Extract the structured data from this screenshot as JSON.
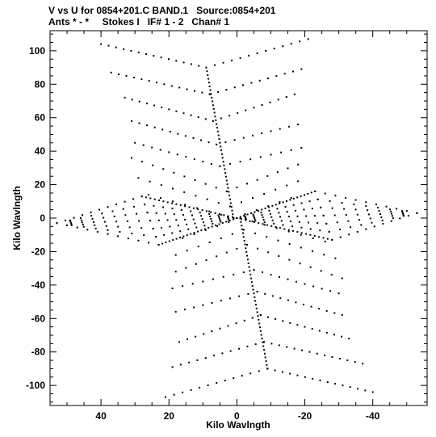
{
  "header": {
    "line1": "V vs U for 0854+201.C BAND.1   Source:0854+201",
    "line2": "Ants * - *     Stokes I   IF# 1 - 2   Chan# 1"
  },
  "chart_data": {
    "type": "scatter",
    "title": "V vs U for 0854+201.C BAND.1   Source:0854+201",
    "subtitle": "Ants * - *     Stokes I   IF# 1 - 2   Chan# 1",
    "xlabel": "Kilo Wavlngth",
    "ylabel": "Kilo Wavlngth",
    "xlim": [
      55,
      -56
    ],
    "ylim": [
      -112,
      112
    ],
    "x_ticks": [
      40,
      20,
      0,
      -20,
      -40
    ],
    "x_tick_labels": [
      "40",
      "20",
      "0",
      "-20",
      "-40"
    ],
    "y_ticks": [
      100,
      80,
      60,
      40,
      20,
      0,
      -20,
      -40,
      -60,
      -80,
      -100
    ],
    "y_tick_labels": [
      "100",
      "80",
      "60",
      "40",
      "20",
      "0",
      "-20",
      "-40",
      "-60",
      "-80",
      "-100"
    ],
    "grid": false,
    "point_color": "#000000",
    "uv_tracks": {
      "description_note": "UV coverage with conjugate symmetry; upper V-shaped arcs mirrored to lower Λ-shaped arcs",
      "upper_arcs": [
        {
          "left": [
            40,
            104
          ],
          "vertex": [
            9,
            90
          ],
          "right": [
            -21,
            107
          ]
        },
        {
          "left": [
            37,
            87
          ],
          "vertex": [
            8,
            74
          ],
          "right": [
            -19,
            89
          ]
        },
        {
          "left": [
            33,
            72
          ],
          "vertex": [
            7,
            58
          ],
          "right": [
            -17,
            74
          ]
        },
        {
          "left": [
            31,
            58
          ],
          "vertex": [
            6,
            44
          ],
          "right": [
            -18,
            56
          ]
        },
        {
          "left": [
            30,
            45
          ],
          "vertex": [
            5,
            31
          ],
          "right": [
            -19,
            42
          ]
        },
        {
          "left": [
            31,
            36
          ],
          "vertex": [
            3,
            16
          ],
          "right": [
            -18,
            32
          ]
        },
        {
          "left": [
            29,
            24
          ],
          "vertex": [
            2,
            7
          ],
          "right": [
            -18,
            22
          ]
        },
        {
          "left": [
            26,
            14
          ],
          "vertex": [
            1,
            0
          ],
          "right": [
            -16,
            12
          ]
        }
      ],
      "left_lobe": {
        "left_tip": [
          53,
          -3
        ],
        "top_corner": [
          28,
          13
        ],
        "bottom_corner": [
          23,
          -16
        ],
        "vertex": [
          0,
          0
        ]
      },
      "right_lobe": {
        "right_tip": [
          -53,
          3
        ],
        "top_corner": [
          -23,
          16
        ],
        "bottom_corner": [
          -28,
          -13
        ],
        "vertex": [
          0,
          0
        ]
      }
    }
  }
}
